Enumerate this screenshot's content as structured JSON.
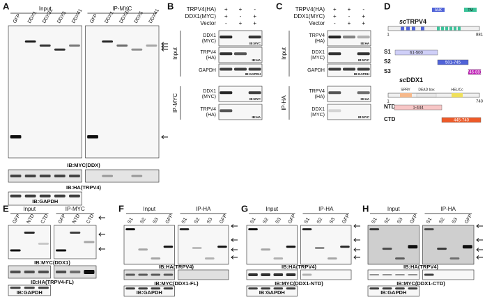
{
  "panel_a": {
    "label": "A",
    "groups": [
      "Input",
      "IP-MYC"
    ],
    "lanes": [
      "GFP",
      "DDX1",
      "DDX3X",
      "DDX5",
      "DDX41",
      "GFP",
      "DDX1",
      "DDX3X",
      "DDX5",
      "DDX41"
    ],
    "blots": [
      "IB:MYC(DDX)",
      "IB:HA(TRPV4)",
      "IB:GAPDH"
    ]
  },
  "panel_b": {
    "label": "B",
    "conditions": [
      {
        "name": "TRPV4(HA)",
        "signs": [
          "+",
          "+",
          "-"
        ]
      },
      {
        "name": "DDX1(MYC)",
        "signs": [
          "+",
          "-",
          "+"
        ]
      },
      {
        "name": "Vector",
        "signs": [
          "-",
          "+",
          "+"
        ]
      }
    ],
    "sections": [
      {
        "name": "Input",
        "blots": [
          {
            "target_lines": [
              "DDX1",
              "(MYC)"
            ],
            "ib": "IB:MYC"
          },
          {
            "target_lines": [
              "TRPV4",
              "(HA)"
            ],
            "ib": "IB:HA"
          },
          {
            "target_lines": [
              "GAPDH"
            ],
            "ib": "IB:GAPDH"
          }
        ]
      },
      {
        "name": "IP-MYC",
        "blots": [
          {
            "target_lines": [
              "DDX1",
              "(MYC)"
            ],
            "ib": "IB:MYC"
          },
          {
            "target_lines": [
              "TRPV4",
              "(HA)"
            ],
            "ib": "IB:HA"
          }
        ]
      }
    ]
  },
  "panel_c": {
    "label": "C",
    "conditions": [
      {
        "name": "TRPV4(HA)",
        "signs": [
          "+",
          "+",
          "-"
        ]
      },
      {
        "name": "DDX1(MYC)",
        "signs": [
          "+",
          "-",
          "+"
        ]
      },
      {
        "name": "Vector",
        "signs": [
          "-",
          "+",
          "+"
        ]
      }
    ],
    "sections": [
      {
        "name": "Input",
        "blots": [
          {
            "target_lines": [
              "TRPV4",
              "(HA)"
            ],
            "ib": "IB:HA"
          },
          {
            "target_lines": [
              "DDX1",
              "(MYC)"
            ],
            "ib": "IB:MYC"
          },
          {
            "target_lines": [
              "GAPDH"
            ],
            "ib": "IB:GAPDH"
          }
        ]
      },
      {
        "name": "IP-HA",
        "blots": [
          {
            "target_lines": [
              "TRPV4",
              "(HA)"
            ],
            "ib": "IB:HA"
          },
          {
            "target_lines": [
              "DDX1",
              "(MYC)"
            ],
            "ib": "IB:MYC"
          }
        ]
      }
    ]
  },
  "panel_d": {
    "label": "D",
    "proteins": [
      {
        "name_prefix": "sc",
        "name": "TRPV4",
        "start": 1,
        "end": 881,
        "domains": [
          "ANK",
          "TM"
        ],
        "fragments": [
          {
            "name": "S1",
            "range": "61-500"
          },
          {
            "name": "S2",
            "range": "501-745"
          },
          {
            "name": "S3",
            "range": "746-881"
          }
        ]
      },
      {
        "name_prefix": "sc",
        "name": "DDX1",
        "start": 1,
        "end": 740,
        "domains": [
          "SPRY",
          "DEAD box",
          "HELICc"
        ],
        "fragments": [
          {
            "name": "NTD",
            "range": "1-444"
          },
          {
            "name": "CTD",
            "range": "445-740"
          }
        ]
      }
    ]
  },
  "panel_e": {
    "label": "E",
    "groups": [
      "Input",
      "IP-MYC"
    ],
    "lanes": [
      "GFP",
      "NTD",
      "CTD",
      "GFP",
      "NTD",
      "CTD"
    ],
    "blots": [
      "IB:MYC(DDX1)",
      "IB:HA(TRPV4-FL)",
      "IB:GAPDH"
    ]
  },
  "panel_f": {
    "label": "F",
    "groups": [
      "Input",
      "IP-HA"
    ],
    "lanes": [
      "S1",
      "S2",
      "S3",
      "GFP",
      "S1",
      "S2",
      "S3",
      "GFP"
    ],
    "blots": [
      "IB:HA(TRPV4)",
      "IB:MYC(DDX1-FL)",
      "IB:GAPDH"
    ]
  },
  "panel_g": {
    "label": "G",
    "groups": [
      "Input",
      "IP-HA"
    ],
    "lanes": [
      "S1",
      "S2",
      "S3",
      "GFP",
      "S1",
      "S2",
      "S3",
      "GFP"
    ],
    "blots": [
      "IB:HA(TRPV4)",
      "IB:MYC(DDX1-NTD)",
      "IB:GAPDH"
    ]
  },
  "panel_h": {
    "label": "H",
    "groups": [
      "Input",
      "IP-HA"
    ],
    "lanes": [
      "S1",
      "S2",
      "S3",
      "GFP",
      "S1",
      "S2",
      "S3",
      "GFP"
    ],
    "blots": [
      "IB:HA(TRPV4)",
      "IB:MYC(DDX1-CTD)",
      "IB:GAPDH"
    ]
  }
}
